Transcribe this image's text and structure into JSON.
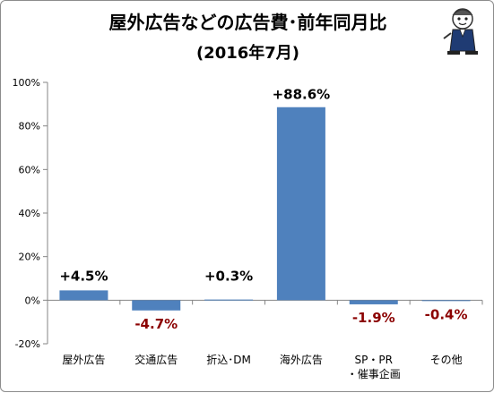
{
  "title": "屋外広告などの広告費･前年同月比",
  "subtitle": "(2016年7月)",
  "chart_data": {
    "type": "bar",
    "title": "屋外広告などの広告費･前年同月比",
    "subtitle": "(2016年7月)",
    "categories": [
      [
        "屋外広告"
      ],
      [
        "交通広告"
      ],
      [
        "折込･DM"
      ],
      [
        "海外広告"
      ],
      [
        "SP・PR",
        "・催事企画"
      ],
      [
        "その他"
      ]
    ],
    "values": [
      4.5,
      -4.7,
      0.3,
      88.6,
      -1.9,
      -0.4
    ],
    "value_labels": [
      "+4.5%",
      "-4.7%",
      "+0.3%",
      "+88.6%",
      "-1.9%",
      "-0.4%"
    ],
    "ylim": [
      -20,
      100
    ],
    "yticks": [
      -20,
      0,
      20,
      40,
      60,
      80,
      100
    ],
    "ytick_labels": [
      "-20%",
      "0%",
      "20%",
      "40%",
      "60%",
      "80%",
      "100%"
    ],
    "xlabel": "",
    "ylabel": "",
    "legend": "none",
    "grid": false,
    "colors": {
      "bar": "#4f81bd",
      "positive_label": "#000000",
      "negative_label": "#8b0000",
      "axis": "#868686"
    }
  }
}
